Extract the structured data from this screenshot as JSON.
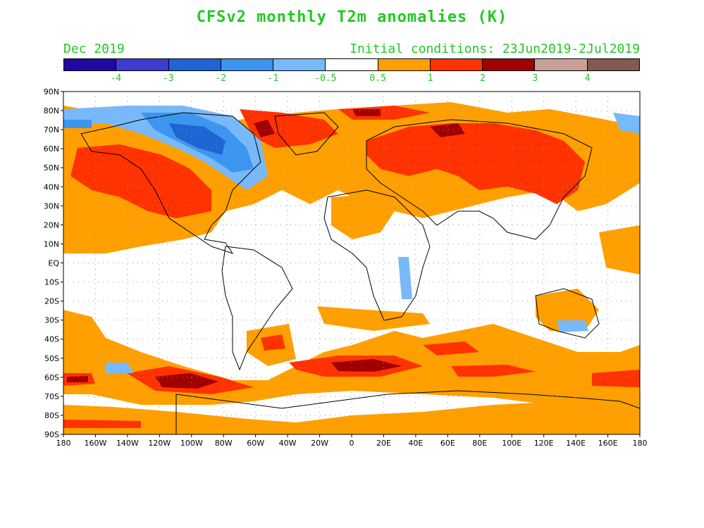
{
  "title": "CFSv2 monthly T2m anomalies (K)",
  "month": "Dec 2019",
  "init_conditions": "Initial conditions: 23Jun2019-2Jul2019",
  "text_color": "#22c822",
  "colorbar": {
    "colors": [
      "#1e0aa0",
      "#3c3cd2",
      "#1e64d2",
      "#3c96f0",
      "#78b9fa",
      "#ffffff",
      "#ffa000",
      "#ff3200",
      "#a00000",
      "#c8a096",
      "#825a50"
    ],
    "labels": [
      "-4",
      "-3",
      "-2",
      "-1",
      "-0.5",
      "0.5",
      "1",
      "2",
      "3",
      "4"
    ]
  },
  "lat_labels": [
    "90N",
    "80N",
    "70N",
    "60N",
    "50N",
    "40N",
    "30N",
    "20N",
    "10N",
    "EQ",
    "10S",
    "20S",
    "30S",
    "40S",
    "50S",
    "60S",
    "70S",
    "80S",
    "90S"
  ],
  "lon_labels": [
    "180",
    "160W",
    "140W",
    "120W",
    "100W",
    "80W",
    "60W",
    "40W",
    "20W",
    "0",
    "20E",
    "40E",
    "60E",
    "80E",
    "100E",
    "120E",
    "140E",
    "160E",
    "180"
  ]
}
